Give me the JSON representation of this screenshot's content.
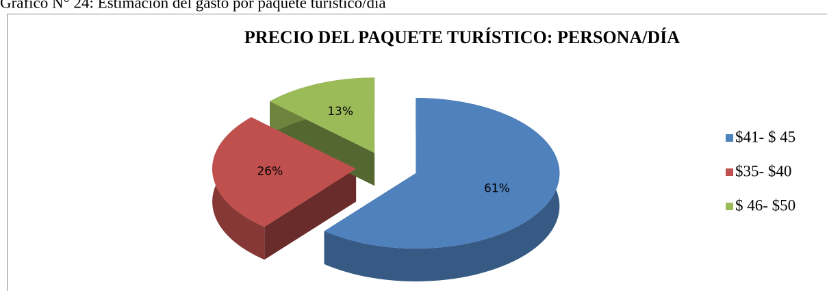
{
  "caption": "Gráfico N° 24: Estimación del gasto por paquete turístico/día",
  "chart_data": {
    "type": "pie3d",
    "title": "PRECIO DEL PAQUETE TURÍSTICO: PERSONA/DÍA",
    "categories": [
      "$41- $ 45",
      "$35- $40",
      "$ 46- $50"
    ],
    "values": [
      61,
      26,
      13
    ],
    "value_labels": [
      "61%",
      "26%",
      "13%"
    ],
    "colors": [
      "#4f81bd",
      "#c0504d",
      "#9bbb59"
    ],
    "legend": "right"
  }
}
